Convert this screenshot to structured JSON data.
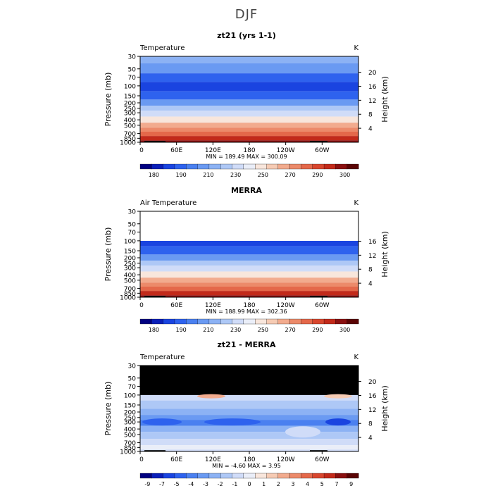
{
  "figure": {
    "title": "DJF"
  },
  "chart_data": [
    {
      "type": "heatmap",
      "title": "zt21 (yrs 1-1)",
      "subtitle_left": "Temperature",
      "units": "K",
      "xlabel": "",
      "ylabel": "Pressure (mb)",
      "ylabel_right": "Height (km)",
      "x_ticks": [
        "0",
        "60E",
        "120E",
        "180",
        "120W",
        "60W"
      ],
      "y_ticks": [
        "30",
        "50",
        "70",
        "100",
        "150",
        "200",
        "250",
        "300",
        "400",
        "500",
        "700",
        "850",
        "1000"
      ],
      "y_right_ticks": [
        "20",
        "16",
        "12",
        "8",
        "4"
      ],
      "stats": "MIN = 189.49   MAX = 300.09",
      "min": 189.49,
      "max": 300.09,
      "colorbar": {
        "labels": [
          "180",
          "190",
          "210",
          "230",
          "250",
          "270",
          "290",
          "300"
        ],
        "colors": [
          "#000080",
          "#0a1fb8",
          "#1a44e0",
          "#2e62ee",
          "#4a80f0",
          "#6a9af2",
          "#8cb2f4",
          "#aec8f6",
          "#d0dcf8",
          "#eaeef8",
          "#f8e6dc",
          "#f6cbb4",
          "#f2ab8e",
          "#ec8a6a",
          "#e4684a",
          "#d8462e",
          "#c22a1a",
          "#8a1010",
          "#5a0404"
        ]
      },
      "profile": [
        {
          "p": 30,
          "c": 6
        },
        {
          "p": 50,
          "c": 5
        },
        {
          "p": 70,
          "c": 3
        },
        {
          "p": 100,
          "c": 2
        },
        {
          "p": 150,
          "c": 3
        },
        {
          "p": 200,
          "c": 5
        },
        {
          "p": 250,
          "c": 7
        },
        {
          "p": 300,
          "c": 8
        },
        {
          "p": 400,
          "c": 10
        },
        {
          "p": 500,
          "c": 12
        },
        {
          "p": 600,
          "c": 13
        },
        {
          "p": 700,
          "c": 14
        },
        {
          "p": 850,
          "c": 16
        },
        {
          "p": 1000,
          "c": 17
        }
      ],
      "masked_top": false
    },
    {
      "type": "heatmap",
      "title": "MERRA",
      "subtitle_left": "Air Temperature",
      "units": "K",
      "xlabel": "",
      "ylabel": "Pressure (mb)",
      "ylabel_right": "Height (km)",
      "x_ticks": [
        "0",
        "60E",
        "120E",
        "180",
        "120W",
        "60W"
      ],
      "y_ticks": [
        "30",
        "50",
        "70",
        "100",
        "150",
        "200",
        "250",
        "300",
        "400",
        "500",
        "700",
        "850",
        "1000"
      ],
      "y_right_ticks": [
        "16",
        "12",
        "8",
        "4"
      ],
      "stats": "MIN = 188.99   MAX = 302.36",
      "min": 188.99,
      "max": 302.36,
      "colorbar": {
        "labels": [
          "180",
          "190",
          "210",
          "230",
          "250",
          "270",
          "290",
          "300"
        ],
        "colors": [
          "#000080",
          "#0a1fb8",
          "#1a44e0",
          "#2e62ee",
          "#4a80f0",
          "#6a9af2",
          "#8cb2f4",
          "#aec8f6",
          "#d0dcf8",
          "#eaeef8",
          "#f8e6dc",
          "#f6cbb4",
          "#f2ab8e",
          "#ec8a6a",
          "#e4684a",
          "#d8462e",
          "#c22a1a",
          "#8a1010",
          "#5a0404"
        ]
      },
      "profile": [
        {
          "p": 100,
          "c": 2
        },
        {
          "p": 150,
          "c": 3
        },
        {
          "p": 200,
          "c": 5
        },
        {
          "p": 250,
          "c": 7
        },
        {
          "p": 300,
          "c": 8
        },
        {
          "p": 400,
          "c": 10
        },
        {
          "p": 500,
          "c": 12
        },
        {
          "p": 600,
          "c": 13
        },
        {
          "p": 700,
          "c": 14
        },
        {
          "p": 850,
          "c": 16
        },
        {
          "p": 1000,
          "c": 17
        }
      ],
      "masked_top": false,
      "blank_above": 100
    },
    {
      "type": "heatmap",
      "title": "zt21 - MERRA",
      "subtitle_left": "Temperature",
      "units": "K",
      "xlabel": "",
      "ylabel": "Pressure (mb)",
      "ylabel_right": "Height (km)",
      "x_ticks": [
        "0",
        "60E",
        "120E",
        "180",
        "120W",
        "60W"
      ],
      "y_ticks": [
        "30",
        "50",
        "70",
        "100",
        "150",
        "200",
        "250",
        "300",
        "400",
        "500",
        "700",
        "850",
        "1000"
      ],
      "y_right_ticks": [
        "20",
        "16",
        "12",
        "8",
        "4"
      ],
      "stats": "MIN =   -4.60   MAX =    3.95",
      "min": -4.6,
      "max": 3.95,
      "colorbar": {
        "labels": [
          "-9",
          "-7",
          "-5",
          "-4",
          "-3",
          "-2",
          "-1",
          "0",
          "1",
          "2",
          "3",
          "4",
          "5",
          "7",
          "9"
        ],
        "colors": [
          "#000080",
          "#0a1fb8",
          "#1a44e0",
          "#2e62ee",
          "#4a80f0",
          "#6a9af2",
          "#8cb2f4",
          "#aec8f6",
          "#d0dcf8",
          "#eaeef8",
          "#f8e6dc",
          "#f6cbb4",
          "#f2ab8e",
          "#ec8a6a",
          "#e4684a",
          "#d8462e",
          "#c22a1a",
          "#8a1010",
          "#5a0404"
        ]
      },
      "profile": [
        {
          "p": 100,
          "c": 8
        },
        {
          "p": 150,
          "c": 7
        },
        {
          "p": 200,
          "c": 6
        },
        {
          "p": 250,
          "c": 5
        },
        {
          "p": 300,
          "c": 4
        },
        {
          "p": 400,
          "c": 6
        },
        {
          "p": 500,
          "c": 7
        },
        {
          "p": 700,
          "c": 8
        },
        {
          "p": 850,
          "c": 9
        },
        {
          "p": 1000,
          "c": 8
        }
      ],
      "masked_top": true,
      "mask_above": 100
    }
  ]
}
